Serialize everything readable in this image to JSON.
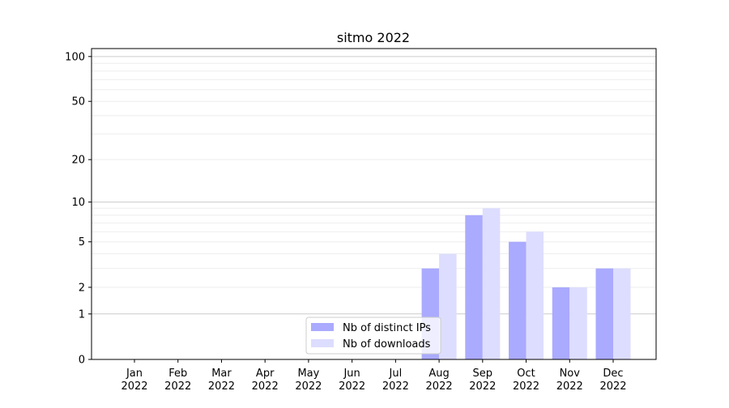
{
  "chart_data": {
    "type": "bar",
    "title": "sitmo 2022",
    "xlabel": "",
    "ylabel": "",
    "yscale": "log(1+y)",
    "ylim": [
      0,
      113
    ],
    "yticks": [
      0,
      1,
      2,
      5,
      10,
      20,
      50,
      100
    ],
    "grid": true,
    "legend_position": "bottom-center",
    "categories": [
      "Jan\n2022",
      "Feb\n2022",
      "Mar\n2022",
      "Apr\n2022",
      "May\n2022",
      "Jun\n2022",
      "Jul\n2022",
      "Aug\n2022",
      "Sep\n2022",
      "Oct\n2022",
      "Nov\n2022",
      "Dec\n2022"
    ],
    "series": [
      {
        "name": "Nb of distinct IPs",
        "color": "#aaaaff",
        "values": [
          0,
          0,
          0,
          0,
          0,
          0,
          0,
          3,
          8,
          5,
          2,
          3
        ]
      },
      {
        "name": "Nb of downloads",
        "color": "#ddddff",
        "values": [
          0,
          0,
          0,
          0,
          0,
          0,
          0,
          4,
          9,
          6,
          2,
          3
        ]
      }
    ]
  }
}
